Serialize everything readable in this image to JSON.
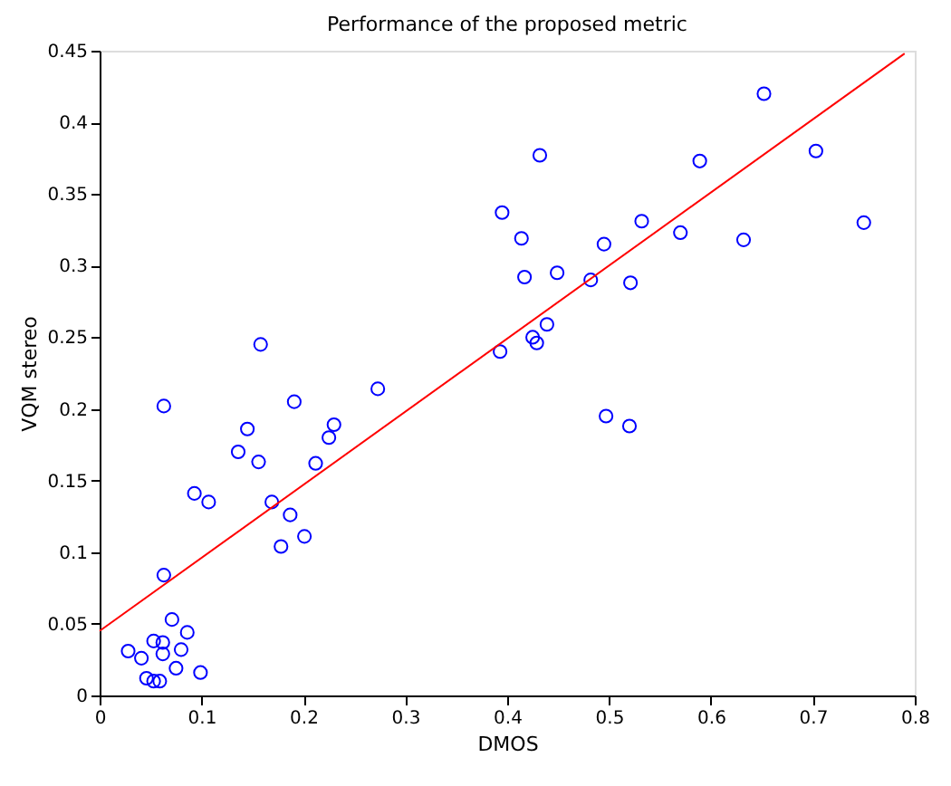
{
  "chart_data": {
    "type": "scatter",
    "title": "Performance of the proposed metric",
    "xlabel": "DMOS",
    "ylabel": "VQM stereo",
    "xlim": [
      0,
      0.8
    ],
    "xticks": [
      0,
      0.1,
      0.2,
      0.3,
      0.4,
      0.5,
      0.6,
      0.7,
      0.8
    ],
    "ylim": [
      0,
      0.45
    ],
    "yticks": [
      0,
      0.05,
      0.1,
      0.15,
      0.2,
      0.25,
      0.3,
      0.35,
      0.4,
      0.45
    ],
    "grid": false,
    "series": [
      {
        "type": "scatter",
        "marker": "circle",
        "color": "#0000ff",
        "x": [
          0.028,
          0.041,
          0.053,
          0.062,
          0.062,
          0.071,
          0.086,
          0.08,
          0.075,
          0.046,
          0.053,
          0.059,
          0.099,
          0.063,
          0.178,
          0.201,
          0.063,
          0.158,
          0.093,
          0.107,
          0.136,
          0.145,
          0.156,
          0.191,
          0.169,
          0.187,
          0.212,
          0.225,
          0.23,
          0.273,
          0.432,
          0.395,
          0.414,
          0.417,
          0.449,
          0.482,
          0.495,
          0.521,
          0.532,
          0.589,
          0.57,
          0.632,
          0.652,
          0.703,
          0.75,
          0.393,
          0.425,
          0.429,
          0.439,
          0.497,
          0.52
        ],
        "values": [
          0.031,
          0.026,
          0.038,
          0.037,
          0.029,
          0.053,
          0.044,
          0.032,
          0.019,
          0.012,
          0.01,
          0.01,
          0.016,
          0.084,
          0.104,
          0.111,
          0.202,
          0.245,
          0.141,
          0.135,
          0.17,
          0.186,
          0.163,
          0.205,
          0.135,
          0.126,
          0.162,
          0.18,
          0.189,
          0.214,
          0.377,
          0.337,
          0.319,
          0.292,
          0.295,
          0.29,
          0.315,
          0.288,
          0.331,
          0.373,
          0.323,
          0.318,
          0.42,
          0.38,
          0.33,
          0.24,
          0.25,
          0.246,
          0.259,
          0.195,
          0.188
        ]
      },
      {
        "type": "line",
        "marker": "none",
        "line_style": "solid",
        "color": "#ff0000",
        "x": [
          0,
          0.79
        ],
        "values": [
          0.045,
          0.448
        ]
      }
    ]
  }
}
